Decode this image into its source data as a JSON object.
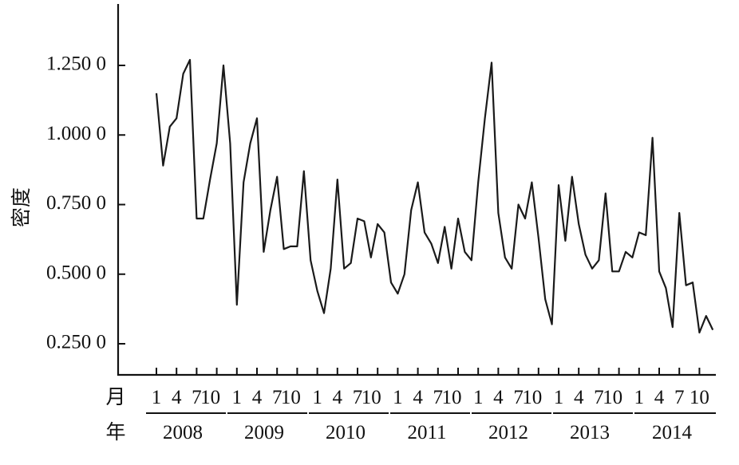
{
  "chart_data": {
    "type": "line",
    "ylabel": "密度",
    "x_month_label": "月",
    "x_year_label": "年",
    "ylim": [
      0.1,
      1.45
    ],
    "yticks": [
      {
        "value": 0.25,
        "label": "0.250 0"
      },
      {
        "value": 0.5,
        "label": "0.500 0"
      },
      {
        "value": 0.75,
        "label": "0.750 0"
      },
      {
        "value": 1.0,
        "label": "1.000 0"
      },
      {
        "value": 1.25,
        "label": "1.250 0"
      }
    ],
    "month_tick_labels": [
      "1",
      "4",
      "7",
      "10"
    ],
    "years": [
      "2008",
      "2009",
      "2010",
      "2011",
      "2012",
      "2013",
      "2014"
    ],
    "series": [
      {
        "values": [
          1.15,
          0.89,
          1.03,
          1.06,
          1.22,
          1.27,
          0.7,
          0.7,
          0.84,
          0.97,
          1.25,
          0.97,
          0.39,
          0.83,
          0.97,
          1.06,
          0.58,
          0.73,
          0.85,
          0.59,
          0.6,
          0.6,
          0.87,
          0.55,
          0.44,
          0.36,
          0.52,
          0.84,
          0.52,
          0.54,
          0.7,
          0.69,
          0.56,
          0.68,
          0.65,
          0.47,
          0.43,
          0.5,
          0.73,
          0.83,
          0.65,
          0.61,
          0.54,
          0.67,
          0.52,
          0.7,
          0.58,
          0.55,
          0.83,
          1.06,
          1.26,
          0.72,
          0.56,
          0.52,
          0.75,
          0.7,
          0.83,
          0.63,
          0.41,
          0.32,
          0.82,
          0.62,
          0.85,
          0.68,
          0.57,
          0.52,
          0.55,
          0.79,
          0.51,
          0.51,
          0.58,
          0.56,
          0.65,
          0.64,
          0.99,
          0.51,
          0.45,
          0.31,
          0.72,
          0.46,
          0.47,
          0.29,
          0.35,
          0.3
        ]
      }
    ]
  }
}
